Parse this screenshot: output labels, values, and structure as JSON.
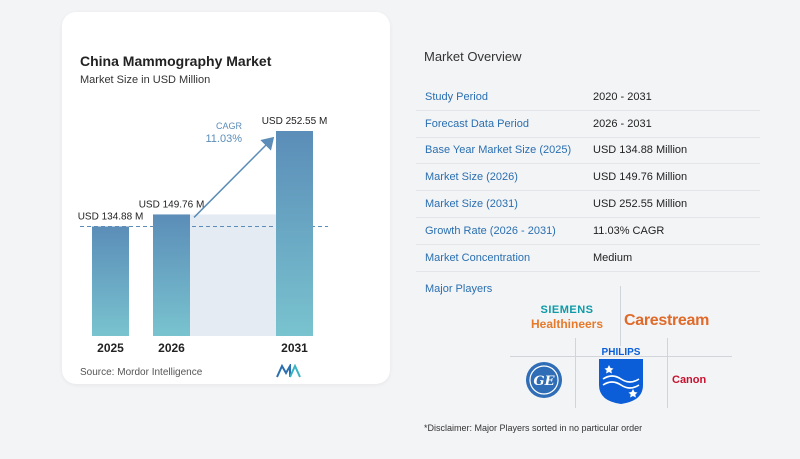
{
  "chart_data": {
    "type": "bar",
    "title": "China Mammography Market",
    "subtitle": "Market Size in USD Million",
    "categories": [
      "2025",
      "2026",
      "2031"
    ],
    "values": [
      134.88,
      149.76,
      252.55
    ],
    "value_labels": [
      "USD 134.88 M",
      "USD 149.76 M",
      "USD 252.55 M"
    ],
    "ylim": [
      0,
      252.55
    ],
    "annotation": {
      "label": "CAGR",
      "value": "11.03%"
    },
    "colors": {
      "bar_top": "#5b8db8",
      "bar_bottom": "#79c3cf",
      "arrow": "#5b8db8",
      "shade": "#e4ebf3",
      "cagr": "#5b8db8"
    }
  },
  "source": "Source: Mordor Intelligence",
  "overview": {
    "title": "Market Overview",
    "rows": [
      {
        "label": "Study Period",
        "value": "2020 - 2031"
      },
      {
        "label": "Forecast Data Period",
        "value": "2026 - 2031"
      },
      {
        "label": "Base Year Market Size (2025)",
        "value": "USD 134.88 Million"
      },
      {
        "label": "Market Size (2026)",
        "value": "USD 149.76 Million"
      },
      {
        "label": "Market Size (2031)",
        "value": "USD 252.55 Million"
      },
      {
        "label": "Growth Rate (2026 - 2031)",
        "value": "11.03% CAGR"
      },
      {
        "label": "Market Concentration",
        "value": "Medium"
      }
    ],
    "players_title": "Major Players",
    "players": {
      "siemens_top": "SIEMENS",
      "siemens_bottom": "Healthineers",
      "carestream": "Carestream",
      "ge": "GE",
      "philips": "PHILIPS",
      "canon": "Canon"
    },
    "disclaimer": "*Disclaimer: Major Players sorted in no particular order"
  }
}
